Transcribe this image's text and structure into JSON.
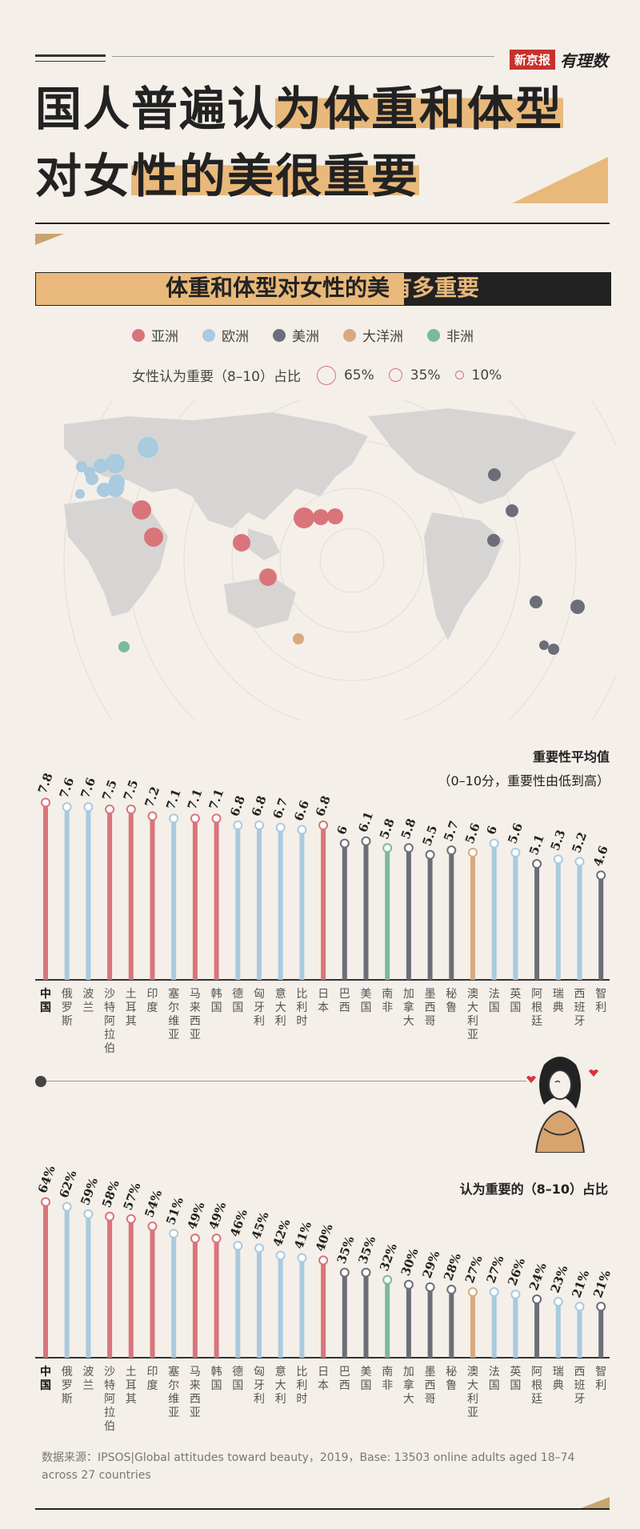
{
  "brand": {
    "paper": "新京报",
    "column": "有理数"
  },
  "title": {
    "line1a": "国人普遍认",
    "line1b": "为体重和体型",
    "line2a": "对女",
    "line2b": "性的美很重要"
  },
  "subtitle": {
    "part1": "体重和体型对女性的美",
    "part2": "有多重要"
  },
  "legend": {
    "items": [
      {
        "key": "asia",
        "label": "亚洲",
        "color": "#d9747a"
      },
      {
        "key": "europe",
        "label": "欧洲",
        "color": "#a9cadf"
      },
      {
        "key": "america",
        "label": "美洲",
        "color": "#6b6e78"
      },
      {
        "key": "oceania",
        "label": "大洋洲",
        "color": "#d9a97e"
      },
      {
        "key": "africa",
        "label": "非洲",
        "color": "#7cb8a0"
      }
    ],
    "size_title": "女性认为重要（8–10）占比",
    "size_labels": [
      "65%",
      "35%",
      "10%"
    ]
  },
  "chart1_note": {
    "title": "重要性平均值",
    "sub": "（0–10分，重要性由低到高）"
  },
  "chart2_note": {
    "title": "认为重要的（8–10）占比"
  },
  "chart_data": [
    {
      "type": "bar",
      "title": "重要性平均值",
      "categories": [
        "中国",
        "俄罗斯",
        "波兰",
        "沙特阿拉伯",
        "土耳其",
        "印度",
        "塞尔维亚",
        "马来西亚",
        "韩国",
        "德国",
        "匈牙利",
        "意大利",
        "比利时",
        "日本",
        "巴西",
        "美国",
        "南非",
        "加拿大",
        "墨西哥",
        "秘鲁",
        "澳大利亚",
        "法国",
        "英国",
        "阿根廷",
        "瑞典",
        "西班牙",
        "智利"
      ],
      "values": [
        7.8,
        7.6,
        7.6,
        7.5,
        7.5,
        7.2,
        7.1,
        7.1,
        7.1,
        6.8,
        6.8,
        6.7,
        6.6,
        6.8,
        6,
        6.1,
        5.8,
        5.8,
        5.5,
        5.7,
        5.6,
        6,
        5.6,
        5.1,
        5.3,
        5.2,
        4.6
      ],
      "regions": [
        "asia",
        "europe",
        "europe",
        "asia",
        "asia",
        "asia",
        "europe",
        "asia",
        "asia",
        "europe",
        "europe",
        "europe",
        "europe",
        "asia",
        "america",
        "america",
        "africa",
        "america",
        "america",
        "america",
        "oceania",
        "europe",
        "europe",
        "america",
        "europe",
        "europe",
        "america"
      ],
      "ylim": [
        0,
        10
      ]
    },
    {
      "type": "bar",
      "title": "认为重要的（8–10）占比",
      "categories": [
        "中国",
        "俄罗斯",
        "波兰",
        "沙特阿拉伯",
        "土耳其",
        "印度",
        "塞尔维亚",
        "马来西亚",
        "韩国",
        "德国",
        "匈牙利",
        "意大利",
        "比利时",
        "日本",
        "巴西",
        "美国",
        "南非",
        "加拿大",
        "墨西哥",
        "秘鲁",
        "澳大利亚",
        "法国",
        "英国",
        "阿根廷",
        "瑞典",
        "西班牙",
        "智利"
      ],
      "values": [
        64,
        62,
        59,
        58,
        57,
        54,
        51,
        49,
        49,
        46,
        45,
        42,
        41,
        40,
        35,
        35,
        32,
        30,
        29,
        28,
        27,
        27,
        26,
        24,
        23,
        21,
        21
      ],
      "value_suffix": "%",
      "regions": [
        "asia",
        "europe",
        "europe",
        "asia",
        "asia",
        "asia",
        "europe",
        "asia",
        "asia",
        "europe",
        "europe",
        "europe",
        "europe",
        "asia",
        "america",
        "america",
        "africa",
        "america",
        "america",
        "america",
        "oceania",
        "europe",
        "europe",
        "america",
        "europe",
        "europe",
        "america"
      ],
      "ylim": [
        0,
        100
      ]
    }
  ],
  "source": "数据来源：IPSOS|Global attitudes toward beauty，2019，Base: 13503 online adults aged 18–74 across 27 countries"
}
